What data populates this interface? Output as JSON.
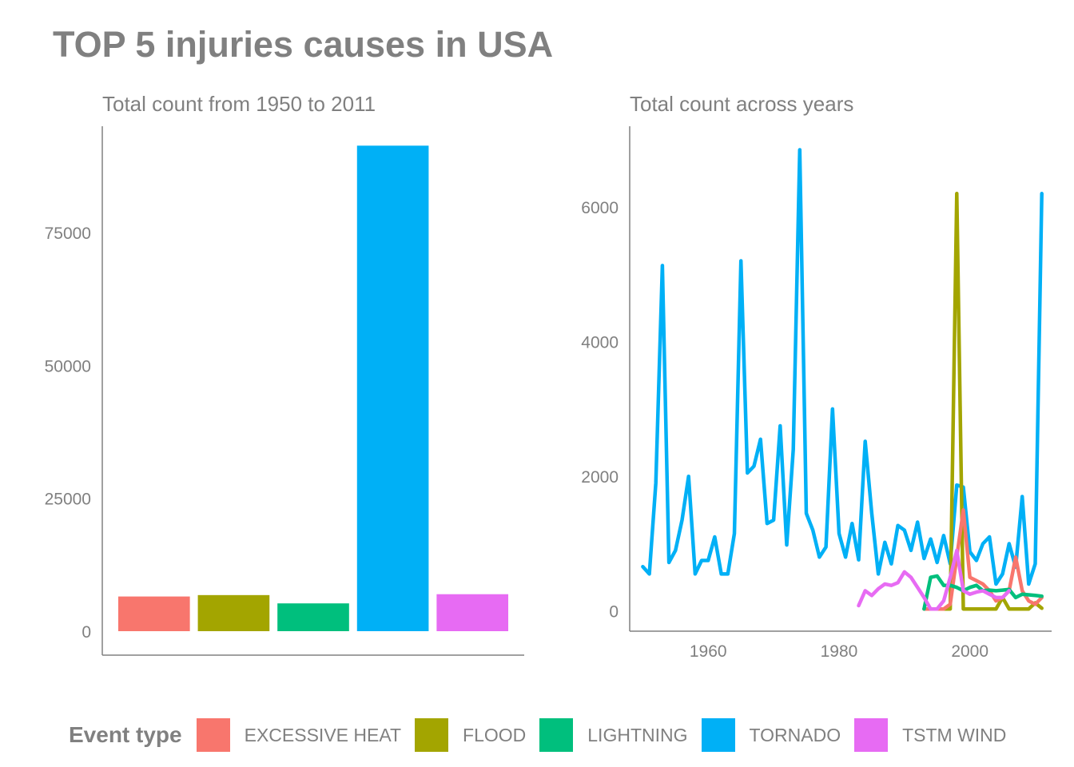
{
  "title": "TOP 5 injuries causes in USA",
  "legend": {
    "title": "Event type",
    "items": [
      {
        "label": "EXCESSIVE HEAT",
        "color": "#F8766D"
      },
      {
        "label": "FLOOD",
        "color": "#A3A500"
      },
      {
        "label": "LIGHTNING",
        "color": "#00BF7D"
      },
      {
        "label": "TORNADO",
        "color": "#00B0F6"
      },
      {
        "label": "TSTM WIND",
        "color": "#E76BF3"
      }
    ]
  },
  "chart_data": [
    {
      "type": "bar",
      "title": "Total count from 1950 to 2011",
      "categories": [
        "EXCESSIVE HEAT",
        "FLOOD",
        "LIGHTNING",
        "TORNADO",
        "TSTM WIND"
      ],
      "values": [
        6525,
        6789,
        5230,
        91346,
        6957
      ],
      "colors": [
        "#F8766D",
        "#A3A500",
        "#00BF7D",
        "#00B0F6",
        "#E76BF3"
      ],
      "ylim": [
        0,
        95000
      ],
      "yticks": [
        0,
        25000,
        50000,
        75000
      ],
      "xlabel": "",
      "ylabel": "",
      "grid": false
    },
    {
      "type": "line",
      "title": "Total count across years",
      "xlim": [
        1948,
        2012.5
      ],
      "ylim": [
        -300,
        7200
      ],
      "xticks": [
        1960,
        1980,
        2000
      ],
      "yticks": [
        0,
        2000,
        4000,
        6000
      ],
      "xlabel": "",
      "ylabel": "",
      "grid": false,
      "series": [
        {
          "name": "TORNADO",
          "color": "#00B0F6",
          "x": [
            1950,
            1951,
            1952,
            1953,
            1954,
            1955,
            1956,
            1957,
            1958,
            1959,
            1960,
            1961,
            1962,
            1963,
            1964,
            1965,
            1966,
            1967,
            1968,
            1969,
            1970,
            1971,
            1972,
            1973,
            1974,
            1975,
            1976,
            1977,
            1978,
            1979,
            1980,
            1981,
            1982,
            1983,
            1984,
            1985,
            1986,
            1987,
            1988,
            1989,
            1990,
            1991,
            1992,
            1993,
            1994,
            1995,
            1996,
            1997,
            1998,
            1999,
            2000,
            2001,
            2002,
            2003,
            2004,
            2005,
            2006,
            2007,
            2008,
            2009,
            2010,
            2011
          ],
          "y": [
            659,
            550,
            1900,
            5130,
            720,
            900,
            1350,
            2000,
            550,
            750,
            750,
            1100,
            550,
            550,
            1150,
            5200,
            2050,
            2150,
            2550,
            1300,
            1350,
            2750,
            980,
            2400,
            6850,
            1450,
            1200,
            800,
            950,
            3000,
            1150,
            800,
            1300,
            760,
            2520,
            1450,
            550,
            1020,
            700,
            1270,
            1200,
            900,
            1320,
            780,
            1070,
            720,
            1120,
            700,
            1870,
            1840,
            880,
            750,
            1000,
            1100,
            400,
            550,
            1000,
            650,
            1700,
            400,
            700,
            6200
          ]
        },
        {
          "name": "FLOOD",
          "color": "#A3A500",
          "x": [
            1993,
            1994,
            1995,
            1996,
            1997,
            1998,
            1999,
            2000,
            2001,
            2002,
            2003,
            2004,
            2005,
            2006,
            2007,
            2008,
            2009,
            2010,
            2011
          ],
          "y": [
            30,
            30,
            30,
            30,
            30,
            6200,
            30,
            30,
            30,
            30,
            30,
            30,
            200,
            30,
            30,
            30,
            30,
            120,
            40
          ]
        },
        {
          "name": "EXCESSIVE HEAT",
          "color": "#F8766D",
          "x": [
            1993,
            1994,
            1995,
            1996,
            1997,
            1998,
            1999,
            2000,
            2001,
            2002,
            2003,
            2004,
            2005,
            2006,
            2007,
            2008,
            2009,
            2010,
            2011
          ],
          "y": [
            30,
            30,
            30,
            30,
            100,
            800,
            1500,
            500,
            450,
            400,
            300,
            150,
            200,
            300,
            800,
            300,
            150,
            100,
            200
          ]
        },
        {
          "name": "LIGHTNING",
          "color": "#00BF7D",
          "x": [
            1993,
            1994,
            1995,
            1996,
            1997,
            1998,
            1999,
            2000,
            2001,
            2002,
            2003,
            2004,
            2005,
            2006,
            2007,
            2008,
            2009,
            2010,
            2011
          ],
          "y": [
            30,
            500,
            520,
            380,
            380,
            350,
            300,
            350,
            380,
            300,
            310,
            300,
            310,
            320,
            200,
            250,
            240,
            230,
            220
          ]
        },
        {
          "name": "TSTM WIND",
          "color": "#E76BF3",
          "x": [
            1983,
            1984,
            1985,
            1986,
            1987,
            1988,
            1989,
            1990,
            1991,
            1992,
            1993,
            1994,
            1995,
            1996,
            1997,
            1998,
            1999,
            2000,
            2001,
            2002,
            2003,
            2004,
            2005,
            2006
          ],
          "y": [
            80,
            300,
            230,
            330,
            400,
            380,
            420,
            580,
            500,
            350,
            200,
            30,
            30,
            150,
            500,
            900,
            300,
            250,
            280,
            300,
            250,
            200,
            200,
            300
          ]
        }
      ]
    }
  ]
}
